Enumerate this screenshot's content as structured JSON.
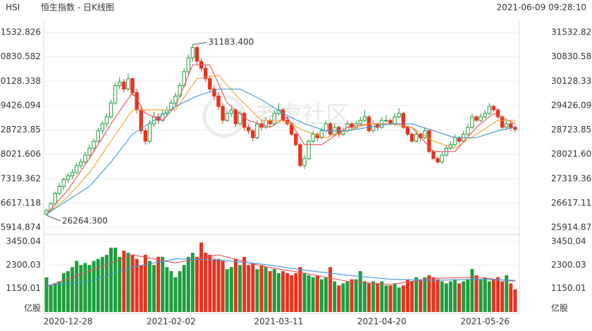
{
  "chart_data": {
    "type": "candlestick",
    "symbol": "HSI",
    "title": "恒生指数 - 日K线图",
    "timestamp": "2021-06-09 09:28:10",
    "watermark": "老虎社区",
    "up_color": "#1e9e3e",
    "down_color": "#e8321e",
    "grid": true,
    "categories": [
      null,
      null,
      null,
      null,
      null,
      "2020-12-28",
      null,
      null,
      null,
      null,
      null,
      null,
      null,
      null,
      null,
      null,
      null,
      null,
      null,
      null,
      null,
      null,
      null,
      null,
      null,
      null,
      null,
      null,
      null,
      "2021-02-02",
      null,
      null,
      null,
      null,
      null,
      null,
      null,
      null,
      null,
      null,
      null,
      null,
      null,
      null,
      null,
      null,
      null,
      null,
      null,
      null,
      null,
      null,
      null,
      null,
      "2021-03-11",
      null,
      null,
      null,
      null,
      null,
      null,
      null,
      null,
      null,
      null,
      null,
      null,
      null,
      null,
      null,
      null,
      null,
      null,
      null,
      null,
      null,
      null,
      null,
      "2021-04-20",
      null,
      null,
      null,
      null,
      null,
      null,
      null,
      null,
      null,
      null,
      null,
      null,
      null,
      null,
      null,
      null,
      null,
      null,
      null,
      null,
      null,
      null,
      null,
      "2021-05-26",
      null,
      null,
      null,
      null,
      null,
      null,
      null
    ],
    "ohlc": [
      [
        26300,
        26450,
        26264.3,
        26400
      ],
      [
        26400,
        26650,
        26350,
        26600
      ],
      [
        26600,
        26950,
        26550,
        26900
      ],
      [
        26900,
        27200,
        26850,
        27100
      ],
      [
        27100,
        27350,
        27000,
        27300
      ],
      [
        27300,
        27480,
        27200,
        27400
      ],
      [
        27400,
        27600,
        27300,
        27500
      ],
      [
        27500,
        27780,
        27450,
        27700
      ],
      [
        27700,
        27900,
        27600,
        27800
      ],
      [
        27800,
        28100,
        27750,
        28000
      ],
      [
        28000,
        28300,
        27900,
        28200
      ],
      [
        28200,
        28480,
        28100,
        28400
      ],
      [
        28400,
        28780,
        28350,
        28700
      ],
      [
        28700,
        28980,
        28600,
        28900
      ],
      [
        28900,
        29200,
        28800,
        29100
      ],
      [
        29100,
        29600,
        29050,
        29500
      ],
      [
        29500,
        30100,
        29450,
        30000
      ],
      [
        30000,
        30250,
        29900,
        30100
      ],
      [
        30100,
        30200,
        29800,
        29900
      ],
      [
        29900,
        30350,
        29850,
        30200
      ],
      [
        30200,
        30250,
        29700,
        29800
      ],
      [
        29800,
        29900,
        29200,
        29300
      ],
      [
        29300,
        29400,
        28600,
        28700
      ],
      [
        28700,
        28800,
        28300,
        28400
      ],
      [
        28400,
        29000,
        28350,
        28900
      ],
      [
        28900,
        29250,
        28800,
        29100
      ],
      [
        29100,
        29200,
        28900,
        29000
      ],
      [
        29000,
        29300,
        28950,
        29200
      ],
      [
        29200,
        29400,
        29100,
        29300
      ],
      [
        29300,
        29600,
        29250,
        29500
      ],
      [
        29500,
        29800,
        29400,
        29700
      ],
      [
        29700,
        30100,
        29650,
        30000
      ],
      [
        30000,
        30500,
        29950,
        30400
      ],
      [
        30400,
        30900,
        30300,
        30800
      ],
      [
        30800,
        31183.4,
        30700,
        31100
      ],
      [
        31100,
        31150,
        30600,
        30700
      ],
      [
        30700,
        30800,
        30400,
        30500
      ],
      [
        30500,
        30600,
        30100,
        30200
      ],
      [
        30200,
        30300,
        29800,
        29900
      ],
      [
        29900,
        30000,
        29600,
        29700
      ],
      [
        29700,
        29800,
        29300,
        29400
      ],
      [
        29400,
        29500,
        28900,
        29000
      ],
      [
        29000,
        29300,
        28950,
        29200
      ],
      [
        29200,
        29400,
        29100,
        29300
      ],
      [
        29300,
        29350,
        28800,
        28900
      ],
      [
        28900,
        29300,
        28850,
        29200
      ],
      [
        29200,
        29250,
        28700,
        28800
      ],
      [
        28800,
        28900,
        28600,
        28700
      ],
      [
        28700,
        28750,
        28400,
        28500
      ],
      [
        28500,
        29000,
        28450,
        28900
      ],
      [
        28900,
        29000,
        28700,
        28800
      ],
      [
        28800,
        29100,
        28750,
        29000
      ],
      [
        29000,
        29050,
        28800,
        28900
      ],
      [
        28900,
        29300,
        28850,
        29200
      ],
      [
        29200,
        29500,
        29150,
        29300
      ],
      [
        29300,
        29350,
        28950,
        29000
      ],
      [
        29000,
        29100,
        28850,
        28900
      ],
      [
        28900,
        28950,
        28550,
        28600
      ],
      [
        28600,
        28650,
        28250,
        28300
      ],
      [
        28300,
        28350,
        27650,
        27700
      ],
      [
        27700,
        28000,
        27600,
        27900
      ],
      [
        27900,
        28450,
        27850,
        28400
      ],
      [
        28400,
        28700,
        28350,
        28600
      ],
      [
        28600,
        28650,
        28400,
        28500
      ],
      [
        28500,
        28800,
        28450,
        28700
      ],
      [
        28700,
        29000,
        28650,
        28900
      ],
      [
        28900,
        28950,
        28550,
        28600
      ],
      [
        28600,
        28900,
        28550,
        28800
      ],
      [
        28800,
        28850,
        28500,
        28600
      ],
      [
        28600,
        28800,
        28550,
        28700
      ],
      [
        28700,
        29000,
        28650,
        28900
      ],
      [
        28900,
        28950,
        28700,
        28800
      ],
      [
        28800,
        29000,
        28750,
        28900
      ],
      [
        28900,
        29100,
        28850,
        29000
      ],
      [
        29000,
        29300,
        28950,
        29100
      ],
      [
        29100,
        29150,
        28650,
        28700
      ],
      [
        28700,
        29000,
        28650,
        28900
      ],
      [
        28900,
        28950,
        28700,
        28800
      ],
      [
        28800,
        29100,
        28750,
        29000
      ],
      [
        29000,
        29150,
        28950,
        29000
      ],
      [
        29000,
        29050,
        28850,
        28900
      ],
      [
        28900,
        29200,
        28850,
        29100
      ],
      [
        29100,
        29350,
        29050,
        29200
      ],
      [
        29200,
        29250,
        28750,
        28800
      ],
      [
        28800,
        28850,
        28550,
        28600
      ],
      [
        28600,
        28650,
        28350,
        28400
      ],
      [
        28400,
        28700,
        28350,
        28600
      ],
      [
        28600,
        28650,
        28400,
        28500
      ],
      [
        28500,
        28800,
        28450,
        28700
      ],
      [
        28700,
        28750,
        28050,
        28100
      ],
      [
        28100,
        28150,
        27850,
        27900
      ],
      [
        27900,
        27950,
        27750,
        27800
      ],
      [
        27800,
        28100,
        27750,
        28000
      ],
      [
        28000,
        28300,
        27950,
        28200
      ],
      [
        28200,
        28400,
        28150,
        28300
      ],
      [
        28300,
        28600,
        28250,
        28500
      ],
      [
        28500,
        28550,
        28350,
        28400
      ],
      [
        28400,
        28700,
        28350,
        28600
      ],
      [
        28600,
        28900,
        28550,
        28800
      ],
      [
        28800,
        29200,
        28750,
        29100
      ],
      [
        29100,
        29150,
        28950,
        29000
      ],
      [
        29000,
        29200,
        28950,
        29100
      ],
      [
        29100,
        29300,
        29050,
        29200
      ],
      [
        29200,
        29500,
        29150,
        29400
      ],
      [
        29400,
        29450,
        29250,
        29300
      ],
      [
        29300,
        29350,
        29050,
        29100
      ],
      [
        29100,
        29150,
        28750,
        28800
      ],
      [
        28800,
        29000,
        28750,
        28900
      ],
      [
        28900,
        28950,
        28700,
        28800
      ],
      [
        28800,
        28850,
        28650,
        28740
      ]
    ],
    "ylim": [
      25914.874,
      31532.826
    ],
    "yticks": [
      25914.874,
      26617.118,
      27319.362,
      28021.606,
      28723.85,
      29426.094,
      30128.338,
      30830.582,
      31532.826
    ],
    "annotations": [
      {
        "value": 31183.4,
        "label": "31183.400"
      },
      {
        "value": 26264.3,
        "label": "26264.300"
      }
    ],
    "ma": [
      {
        "color": "#e8505a",
        "x": [
          0,
          5,
          10,
          15,
          20,
          23,
          27,
          30,
          34,
          38,
          42,
          47,
          52,
          56,
          60,
          64,
          70,
          75,
          80,
          85,
          90,
          95,
          100,
          104,
          109
        ],
        "values": [
          26300,
          27000,
          27900,
          28900,
          29800,
          29200,
          29000,
          29400,
          30600,
          30600,
          29500,
          29000,
          28800,
          29100,
          28300,
          28300,
          28800,
          28900,
          28900,
          28800,
          28100,
          28100,
          28800,
          29200,
          28900
        ]
      },
      {
        "color": "#f0a030",
        "x": [
          0,
          5,
          10,
          15,
          20,
          25,
          30,
          35,
          40,
          45,
          50,
          55,
          60,
          65,
          70,
          75,
          80,
          85,
          90,
          95,
          100,
          105,
          109
        ],
        "values": [
          26300,
          26800,
          27500,
          28400,
          29300,
          29300,
          29300,
          30200,
          30300,
          29600,
          29000,
          29000,
          28700,
          28500,
          28700,
          28900,
          28900,
          28800,
          28400,
          28200,
          28600,
          29000,
          29000
        ]
      },
      {
        "color": "#3a9ad9",
        "x": [
          0,
          10,
          15,
          20,
          25,
          30,
          35,
          40,
          45,
          50,
          55,
          60,
          65,
          70,
          75,
          80,
          85,
          90,
          95,
          100,
          105,
          109
        ],
        "values": [
          26300,
          27100,
          27800,
          28600,
          29000,
          29400,
          29700,
          29900,
          29900,
          29600,
          29200,
          28900,
          28700,
          28700,
          28800,
          28900,
          28900,
          28700,
          28500,
          28500,
          28700,
          28800
        ]
      }
    ],
    "volume": {
      "unit": "亿股",
      "ylim": [
        0,
        3450.04
      ],
      "yticks": [
        1150.01,
        2300.03,
        3450.04
      ],
      "values": [
        1700,
        1300,
        1400,
        1500,
        1900,
        2000,
        2200,
        2500,
        2300,
        2400,
        2300,
        2500,
        2600,
        2700,
        2800,
        3150,
        3150,
        2700,
        3000,
        2900,
        2800,
        2600,
        2300,
        2800,
        2500,
        2300,
        2700,
        2700,
        2200,
        2000,
        1700,
        2000,
        2300,
        2700,
        2900,
        2700,
        3400,
        2900,
        2800,
        2600,
        2600,
        2500,
        2100,
        2200,
        2600,
        2300,
        2700,
        2300,
        2400,
        2100,
        2300,
        2200,
        2000,
        2100,
        1900,
        2000,
        1900,
        1800,
        1900,
        2200,
        1900,
        1800,
        1700,
        1800,
        1600,
        1700,
        2200,
        1500,
        1300,
        1400,
        1500,
        1600,
        1600,
        2000,
        1500,
        1400,
        1500,
        1400,
        1500,
        1300,
        1300,
        1400,
        1200,
        1300,
        1600,
        1500,
        1700,
        1600,
        1700,
        1800,
        1700,
        1600,
        1500,
        1400,
        1500,
        1600,
        1400,
        1500,
        1600,
        2100,
        1800,
        1600,
        1700,
        1500,
        1600,
        1700,
        1500,
        1800,
        1400,
        1100
      ],
      "ma": [
        {
          "color": "#e8505a",
          "x": [
            0,
            10,
            20,
            30,
            40,
            50,
            60,
            70,
            80,
            90,
            100,
            109
          ],
          "values": [
            1250,
            2000,
            2800,
            2400,
            2800,
            2250,
            1900,
            1500,
            1350,
            1650,
            1700,
            1500
          ]
        },
        {
          "color": "#3a9ad9",
          "x": [
            0,
            10,
            20,
            30,
            40,
            50,
            60,
            70,
            80,
            90,
            100,
            109
          ],
          "values": [
            1300,
            1500,
            2200,
            2600,
            2550,
            2350,
            2050,
            1800,
            1600,
            1550,
            1600,
            1550
          ]
        }
      ]
    }
  }
}
